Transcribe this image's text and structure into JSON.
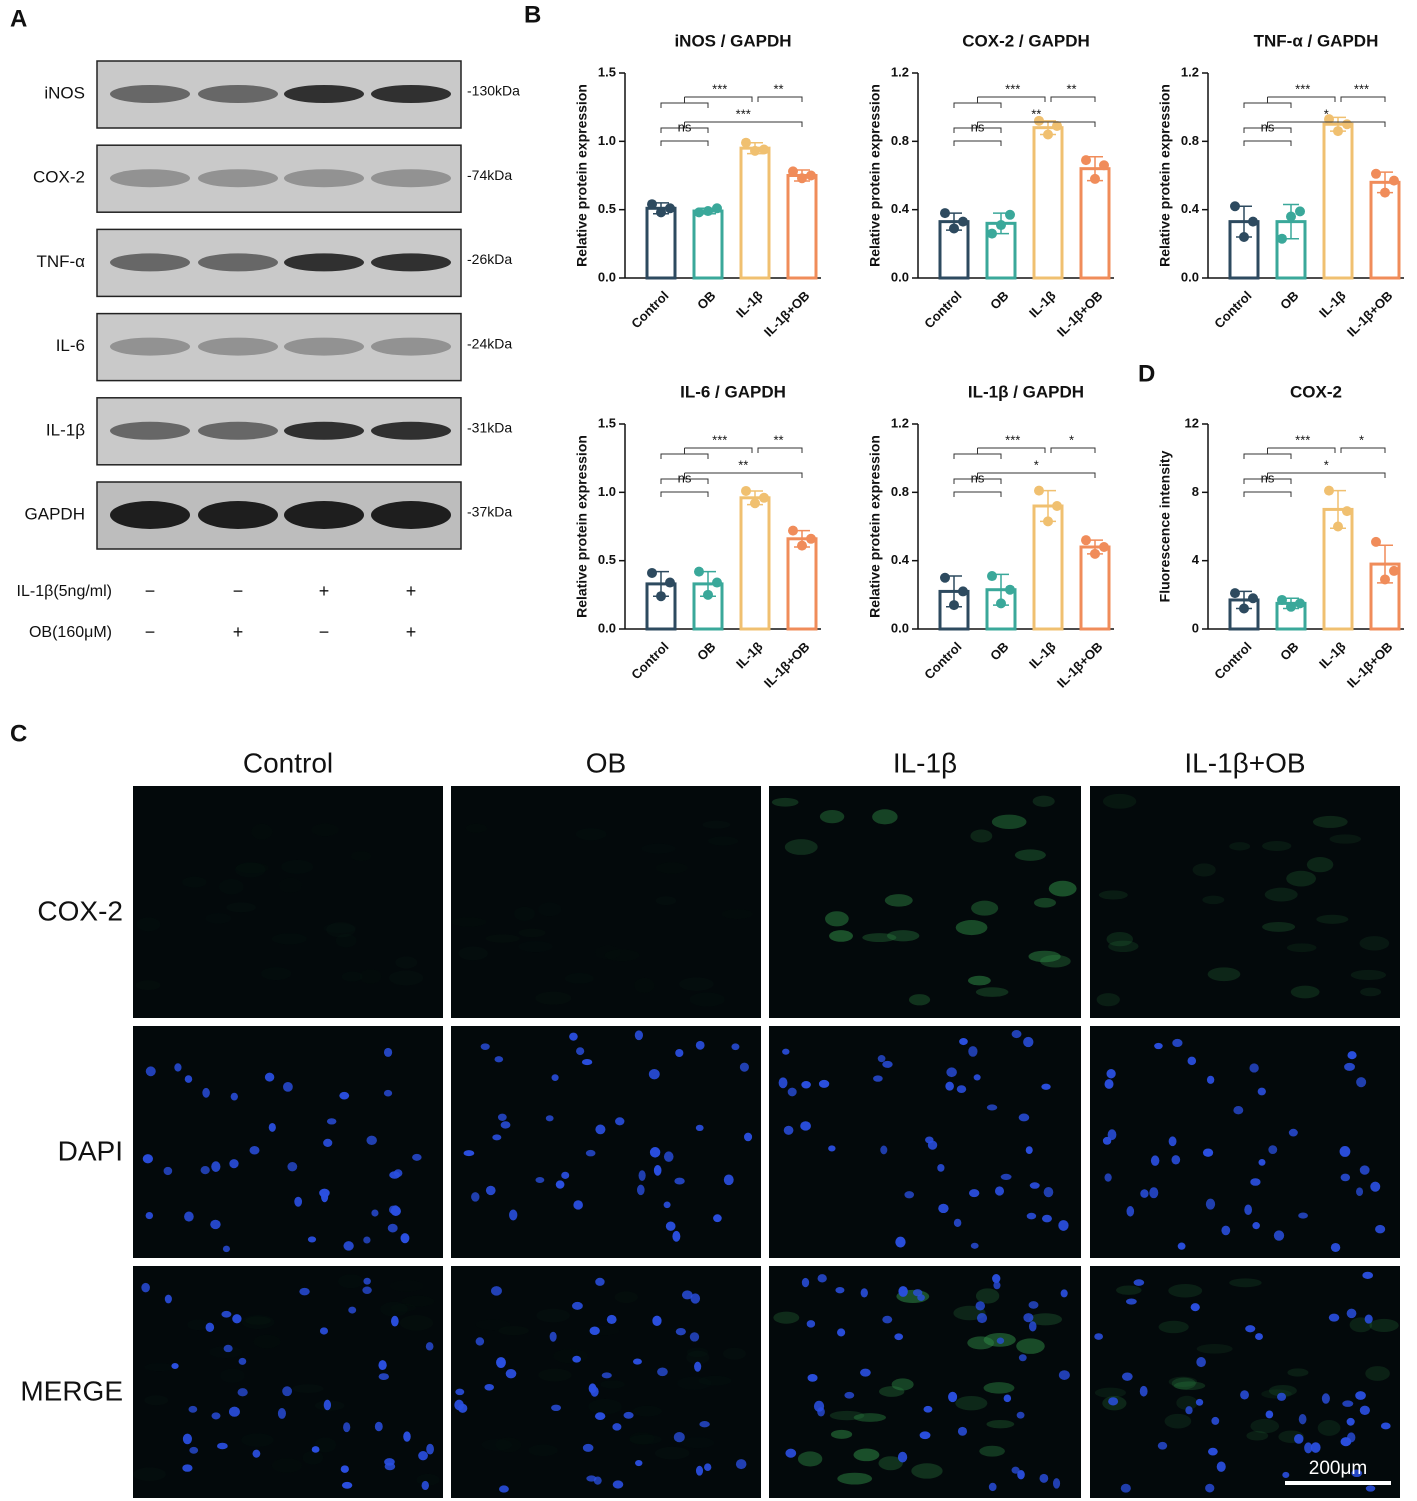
{
  "panels": {
    "a": "A",
    "b": "B",
    "c": "C",
    "d": "D"
  },
  "blot": {
    "proteins": [
      {
        "name": "iNOS",
        "size": "-130kDa"
      },
      {
        "name": "COX-2",
        "size": "-74kDa"
      },
      {
        "name": "TNF-α",
        "size": "-26kDa"
      },
      {
        "name": "IL-6",
        "size": "-24kDa"
      },
      {
        "name": "IL-1β",
        "size": "-31kDa"
      },
      {
        "name": "GAPDH",
        "size": "-37kDa"
      }
    ],
    "treatments": [
      {
        "name": "IL-1β(5ng/ml)",
        "signs": [
          "−",
          "−",
          "+",
          "+"
        ]
      },
      {
        "name": "OB(160μM)",
        "signs": [
          "−",
          "+",
          "−",
          "+"
        ]
      }
    ]
  },
  "chart_data": [
    {
      "type": "bar",
      "title": "iNOS / GAPDH",
      "ylabel": "Relative protein expression",
      "categories": [
        "Control",
        "OB",
        "IL-1β",
        "IL-1β+OB"
      ],
      "colors": [
        "#2d4a5f",
        "#3aa89a",
        "#f0c070",
        "#f08c5a"
      ],
      "values": [
        0.51,
        0.49,
        0.95,
        0.75
      ],
      "errors": [
        0.04,
        0.02,
        0.04,
        0.04
      ],
      "points": [
        [
          0.54,
          0.48,
          0.51
        ],
        [
          0.48,
          0.49,
          0.51
        ],
        [
          0.99,
          0.93,
          0.94
        ],
        [
          0.78,
          0.73,
          0.75
        ]
      ],
      "ylim": [
        0,
        1.5
      ],
      "yticks": [
        {
          "value": 0,
          "label": "0.0"
        },
        0.5,
        {
          "value": 1,
          "label": "1.0"
        },
        1.5
      ],
      "annotations": [
        "ns",
        "***",
        "***",
        "**"
      ]
    },
    {
      "type": "bar",
      "title": "COX-2 / GAPDH",
      "ylabel": "Relative protein expression",
      "categories": [
        "Control",
        "OB",
        "IL-1β",
        "IL-1β+OB"
      ],
      "colors": [
        "#2d4a5f",
        "#3aa89a",
        "#f0c070",
        "#f08c5a"
      ],
      "values": [
        0.33,
        0.32,
        0.88,
        0.64
      ],
      "errors": [
        0.05,
        0.06,
        0.04,
        0.07
      ],
      "points": [
        [
          0.38,
          0.29,
          0.33
        ],
        [
          0.26,
          0.31,
          0.37
        ],
        [
          0.92,
          0.84,
          0.89
        ],
        [
          0.69,
          0.58,
          0.66
        ]
      ],
      "ylim": [
        0,
        1.2
      ],
      "yticks": [
        {
          "value": 0,
          "label": "0.0"
        },
        0.4,
        0.8,
        1.2
      ],
      "annotations": [
        "ns",
        "**",
        "***",
        "**"
      ]
    },
    {
      "type": "bar",
      "title": "TNF-α / GAPDH",
      "ylabel": "Relative protein expression",
      "categories": [
        "Control",
        "OB",
        "IL-1β",
        "IL-1β+OB"
      ],
      "colors": [
        "#2d4a5f",
        "#3aa89a",
        "#f0c070",
        "#f08c5a"
      ],
      "values": [
        0.33,
        0.33,
        0.9,
        0.56
      ],
      "errors": [
        0.09,
        0.1,
        0.04,
        0.06
      ],
      "points": [
        [
          0.42,
          0.24,
          0.33
        ],
        [
          0.23,
          0.36,
          0.39
        ],
        [
          0.93,
          0.86,
          0.9
        ],
        [
          0.61,
          0.5,
          0.57
        ]
      ],
      "ylim": [
        0,
        1.2
      ],
      "yticks": [
        {
          "value": 0,
          "label": "0.0"
        },
        0.4,
        0.8,
        1.2
      ],
      "annotations": [
        "ns",
        "*",
        "***",
        "***"
      ]
    },
    {
      "type": "bar",
      "title": "IL-6 / GAPDH",
      "ylabel": "Relative protein expression",
      "categories": [
        "Control",
        "OB",
        "IL-1β",
        "IL-1β+OB"
      ],
      "colors": [
        "#2d4a5f",
        "#3aa89a",
        "#f0c070",
        "#f08c5a"
      ],
      "values": [
        0.33,
        0.33,
        0.96,
        0.66
      ],
      "errors": [
        0.09,
        0.09,
        0.05,
        0.06
      ],
      "points": [
        [
          0.41,
          0.24,
          0.34
        ],
        [
          0.42,
          0.25,
          0.34
        ],
        [
          1.01,
          0.92,
          0.96
        ],
        [
          0.72,
          0.61,
          0.66
        ]
      ],
      "ylim": [
        0,
        1.5
      ],
      "yticks": [
        {
          "value": 0,
          "label": "0.0"
        },
        0.5,
        {
          "value": 1,
          "label": "1.0"
        },
        1.5
      ],
      "annotations": [
        "ns",
        "**",
        "***",
        "**"
      ]
    },
    {
      "type": "bar",
      "title": "IL-1β / GAPDH",
      "ylabel": "Relative protein expression",
      "categories": [
        "Control",
        "OB",
        "IL-1β",
        "IL-1β+OB"
      ],
      "colors": [
        "#2d4a5f",
        "#3aa89a",
        "#f0c070",
        "#f08c5a"
      ],
      "values": [
        0.22,
        0.23,
        0.72,
        0.48
      ],
      "errors": [
        0.09,
        0.09,
        0.09,
        0.04
      ],
      "points": [
        [
          0.3,
          0.14,
          0.22
        ],
        [
          0.31,
          0.15,
          0.23
        ],
        [
          0.81,
          0.63,
          0.72
        ],
        [
          0.52,
          0.44,
          0.48
        ]
      ],
      "ylim": [
        0,
        1.2
      ],
      "yticks": [
        {
          "value": 0,
          "label": "0.0"
        },
        0.4,
        0.8,
        1.2
      ],
      "annotations": [
        "ns",
        "*",
        "***",
        "*"
      ]
    },
    {
      "type": "bar",
      "title": "COX-2",
      "ylabel": "Fluorescence intensity",
      "categories": [
        "Control",
        "OB",
        "IL-1β",
        "IL-1β+OB"
      ],
      "colors": [
        "#2d4a5f",
        "#3aa89a",
        "#f0c070",
        "#f08c5a"
      ],
      "values": [
        1.7,
        1.5,
        7.0,
        3.8
      ],
      "errors": [
        0.5,
        0.3,
        1.1,
        1.1
      ],
      "points": [
        [
          2.1,
          1.2,
          1.8
        ],
        [
          1.7,
          1.3,
          1.5
        ],
        [
          8.1,
          6.0,
          6.9
        ],
        [
          5.1,
          2.9,
          3.4
        ]
      ],
      "ylim": [
        0,
        12
      ],
      "yticks": [
        0,
        4,
        8,
        12
      ],
      "annotations": [
        "ns",
        "*",
        "***",
        "*"
      ]
    }
  ],
  "imaging": {
    "columns": [
      "Control",
      "OB",
      "IL-1β",
      "IL-1β+OB"
    ],
    "rows": [
      "COX-2",
      "DAPI",
      "MERGE"
    ],
    "scale_bar": "200μm"
  }
}
